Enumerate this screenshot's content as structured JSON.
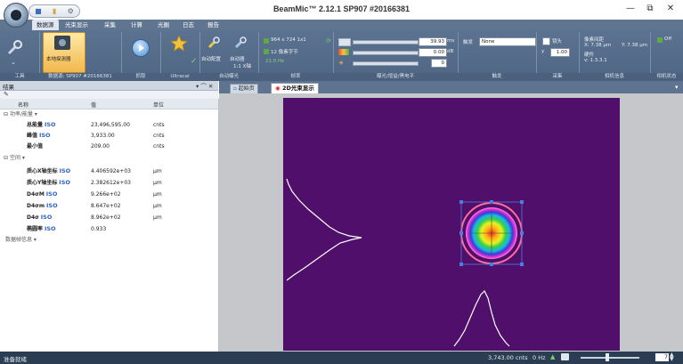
{
  "title_bar": {
    "window_title": "BeamMic™ 2.12.1 SP907 #20166381",
    "minimize_glyph": "—",
    "maximize_glyph": "⧉",
    "close_glyph": "✕"
  },
  "menu": {
    "tabs": [
      {
        "label": "数据源",
        "active": true
      },
      {
        "label": "光束显示",
        "active": false
      },
      {
        "label": "采集",
        "active": false
      },
      {
        "label": "计算",
        "active": false
      },
      {
        "label": "光圈",
        "active": false
      },
      {
        "label": "日志",
        "active": false
      },
      {
        "label": "报告",
        "active": false
      }
    ]
  },
  "ribbon": {
    "local_detector_label": "本地探测器",
    "auto_config_label": "自动配置",
    "auto_label": "自动器",
    "auto_1x_label": "1:1 X轴",
    "resolution_text": "964 x 724 1x1",
    "bits_text": "12 像素字节",
    "fps_text": "21.0 Hz",
    "exposure_value": "39.93",
    "exposure_unit": "ms",
    "gain_value": "0.00",
    "gain_unit": "dB",
    "third_value": "0",
    "trigger_label": "触发",
    "trigger_value": "None",
    "lens_label": "镜头",
    "lens_value": "1.00",
    "pixel_title": "像素间距",
    "pixel_x": "X: 7.38 µm",
    "pixel_y": "Y: 7.38 µm",
    "firmware_label": "硬件",
    "firmware_version": "v: 1.3.3.1",
    "off_label": "Off",
    "groups": {
      "tools": "工具",
      "data_source": "数据源: SP907 #20166381",
      "capture": "抓取",
      "ultracal": "Ultracal",
      "auto_exposure": "自动曝光",
      "frame_rate": "帧率",
      "exposure_gain": "曝光/增益/黑电平",
      "trigger_group": "触发",
      "collect": "采集",
      "pixel_info": "相机信息",
      "status": "相机状态"
    }
  },
  "panel": {
    "title": "结果",
    "pin_glyph": "▾  ⌒  ✕",
    "columns": [
      "名称",
      "值",
      "单位"
    ],
    "groups": [
      {
        "label": "功率/能量",
        "rows": [
          {
            "name": "总能量",
            "iso": "ISO",
            "value": "23,496,595.00",
            "unit": "cnts"
          },
          {
            "name": "峰值",
            "iso": "ISO",
            "value": "3,933.00",
            "unit": "cnts"
          },
          {
            "name": "最小值",
            "iso": "",
            "value": "209.00",
            "unit": "cnts"
          }
        ]
      },
      {
        "label": "空间",
        "rows": [
          {
            "name": "质心X轴坐标",
            "iso": "ISO",
            "value": "4.406592e+03",
            "unit": "µm"
          },
          {
            "name": "质心Y轴坐标",
            "iso": "ISO",
            "value": "2.382612e+03",
            "unit": "µm"
          },
          {
            "name": "D4σM",
            "iso": "ISO",
            "value": "9.266e+02",
            "unit": "µm"
          },
          {
            "name": "D4σm",
            "iso": "ISO",
            "value": "8.647e+02",
            "unit": "µm"
          },
          {
            "name": "D4σ",
            "iso": "ISO",
            "value": "8.962e+02",
            "unit": "µm"
          },
          {
            "name": "椭圆率",
            "iso": "ISO",
            "value": "0.933",
            "unit": ""
          }
        ]
      },
      {
        "label": "数据帧信息",
        "rows": []
      }
    ]
  },
  "doc_tabs": [
    {
      "label": "起始页",
      "active": false
    },
    {
      "label": "2D光束显示",
      "active": true
    }
  ],
  "status": {
    "left_text": "准备就绪",
    "counts": "3,743.00 cnts",
    "rate": "0 Hz",
    "zoom_value": "7"
  },
  "colors": {
    "ribbon": "#52698a",
    "plot_background": "#4f0f6b",
    "profile_line": "#ffffff",
    "status_bar": "#2a3d52"
  }
}
